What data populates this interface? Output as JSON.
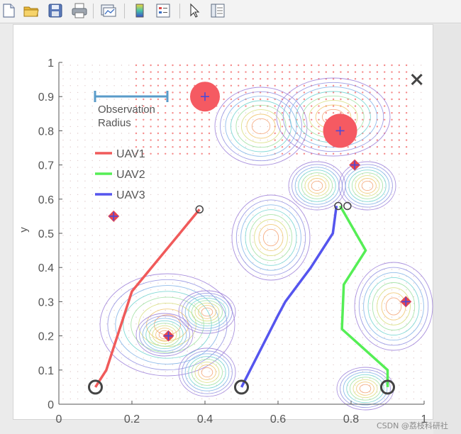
{
  "toolbar": {
    "items": [
      {
        "name": "new-figure",
        "icon": "new-file-icon"
      },
      {
        "name": "open-file",
        "icon": "folder-icon"
      },
      {
        "name": "save-figure",
        "icon": "save-icon"
      },
      {
        "name": "print-figure",
        "icon": "printer-icon"
      },
      {
        "name": "link-plot",
        "icon": "link-plot-icon"
      },
      {
        "name": "insert-colorbar",
        "icon": "colorbar-icon"
      },
      {
        "name": "insert-legend",
        "icon": "legend-icon"
      },
      {
        "name": "edit-plot",
        "icon": "pointer-icon"
      },
      {
        "name": "property-editor",
        "icon": "property-editor-icon"
      }
    ]
  },
  "watermark": "CSDN @荔枝科研社",
  "chart_data": {
    "type": "line",
    "xlabel": "",
    "ylabel": "y",
    "xlim": [
      0,
      1
    ],
    "ylim": [
      0,
      1
    ],
    "x_ticks": [
      "0",
      "0.2",
      "0.4",
      "0.6",
      "0.8",
      "1"
    ],
    "y_ticks": [
      "0",
      "0.1",
      "0.2",
      "0.3",
      "0.4",
      "0.5",
      "0.6",
      "0.7",
      "0.8",
      "0.9",
      "1"
    ],
    "grid": false,
    "legend": {
      "placement": "top-left",
      "observation_label": "Observation Radius",
      "entries": [
        {
          "name": "UAV1",
          "color": "#f05a5a"
        },
        {
          "name": "UAV2",
          "color": "#55ee55"
        },
        {
          "name": "UAV3",
          "color": "#5555ee"
        }
      ]
    },
    "observation_radius": 0.2,
    "series": [
      {
        "name": "UAV1",
        "color": "#f05a5a",
        "x": [
          0.1,
          0.13,
          0.2,
          0.385
        ],
        "y": [
          0.05,
          0.1,
          0.33,
          0.57
        ]
      },
      {
        "name": "UAV2",
        "color": "#55ee55",
        "x": [
          0.9,
          0.9,
          0.775,
          0.78,
          0.84,
          0.77
        ],
        "y": [
          0.05,
          0.1,
          0.22,
          0.35,
          0.45,
          0.58
        ]
      },
      {
        "name": "UAV3",
        "color": "#5555ee",
        "x": [
          0.5,
          0.6,
          0.62,
          0.69,
          0.75,
          0.76
        ],
        "y": [
          0.05,
          0.26,
          0.3,
          0.4,
          0.5,
          0.58
        ]
      }
    ],
    "start_points": {
      "x": [
        0.1,
        0.5,
        0.9
      ],
      "y": [
        0.05,
        0.05,
        0.05
      ]
    },
    "end_points": {
      "x": [
        0.385,
        0.765,
        0.79
      ],
      "y": [
        0.57,
        0.58,
        0.58
      ]
    },
    "targets": {
      "x": [
        0.15,
        0.3,
        0.81,
        0.95,
        0.4,
        0.77
      ],
      "y": [
        0.55,
        0.2,
        0.7,
        0.3,
        0.9,
        0.8
      ],
      "observed": [
        false,
        false,
        false,
        false,
        true,
        true
      ]
    },
    "close_marker": {
      "x": 0.98,
      "y": 0.95
    }
  }
}
